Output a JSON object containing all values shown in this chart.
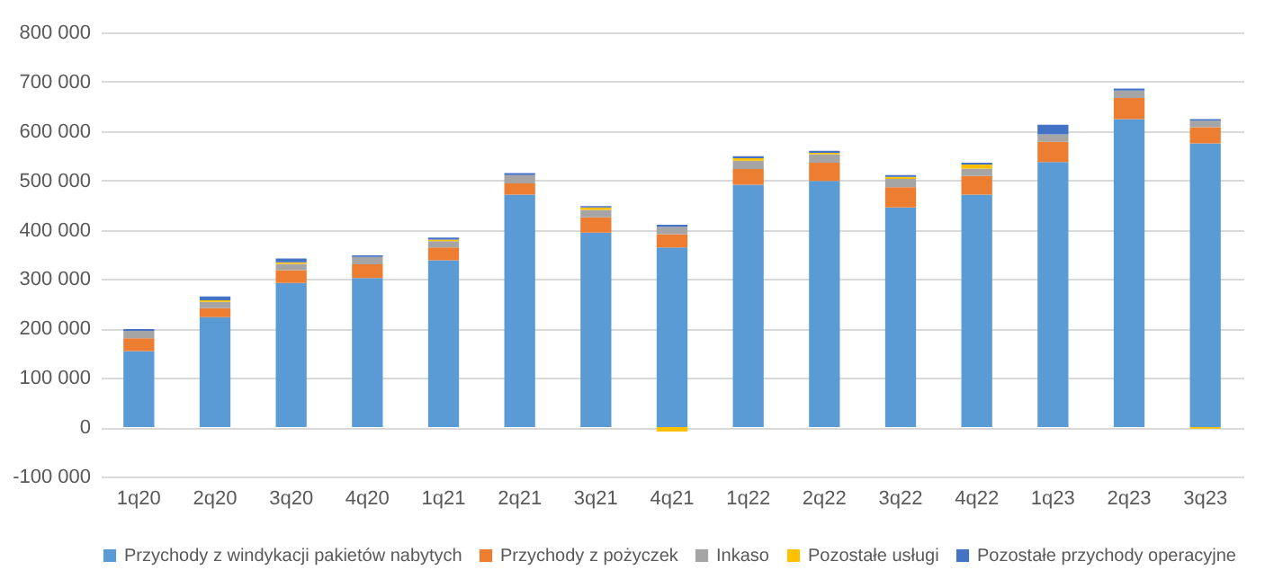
{
  "chart_data": {
    "type": "bar",
    "stacked": true,
    "categories": [
      "1q20",
      "2q20",
      "3q20",
      "4q20",
      "1q21",
      "2q21",
      "3q21",
      "4q21",
      "1q22",
      "2q22",
      "3q22",
      "4q22",
      "1q23",
      "2q23",
      "3q23"
    ],
    "series": [
      {
        "name": "Przychody z windykacji pakietów nabytych",
        "color": "#5b9bd5",
        "values": [
          154000,
          223000,
          292000,
          302000,
          338000,
          471000,
          394000,
          364000,
          491000,
          499000,
          445000,
          471000,
          537000,
          624000,
          575000
        ]
      },
      {
        "name": "Przychody z pożyczek",
        "color": "#ed7d31",
        "values": [
          26000,
          18000,
          26000,
          28000,
          26000,
          23000,
          31000,
          27000,
          32000,
          37000,
          41000,
          38000,
          41000,
          43000,
          33000
        ]
      },
      {
        "name": "Inkaso",
        "color": "#a5a5a5",
        "values": [
          15000,
          13000,
          13000,
          15000,
          13000,
          17000,
          15000,
          15000,
          17000,
          17000,
          17000,
          15000,
          15000,
          15000,
          13000
        ]
      },
      {
        "name": "Pozostałe usługi",
        "color": "#ffc000",
        "values": [
          null,
          3000,
          3000,
          null,
          3000,
          null,
          5000,
          -9000,
          5000,
          3000,
          4000,
          8000,
          null,
          null,
          -3000
        ]
      },
      {
        "name": "Pozostałe przychody operacyjne",
        "color": "#4472c4",
        "values": [
          4000,
          8000,
          8000,
          3000,
          4000,
          4000,
          3000,
          4000,
          4000,
          4000,
          4000,
          4000,
          20000,
          4000,
          3000
        ]
      }
    ],
    "ylim": [
      -100000,
      800000
    ],
    "yticks": [
      {
        "value": -100000,
        "label": "-100 000"
      },
      0,
      {
        "value": 100000,
        "label": "100 000"
      },
      {
        "value": 200000,
        "label": "200 000"
      },
      {
        "value": 300000,
        "label": "300 000"
      },
      {
        "value": 400000,
        "label": "400 000"
      },
      {
        "value": 500000,
        "label": "500 000"
      },
      {
        "value": 600000,
        "label": "600 000"
      },
      {
        "value": 700000,
        "label": "700 000"
      },
      {
        "value": 800000,
        "label": "800 000"
      }
    ],
    "grid": "y",
    "legend": "bottom"
  }
}
